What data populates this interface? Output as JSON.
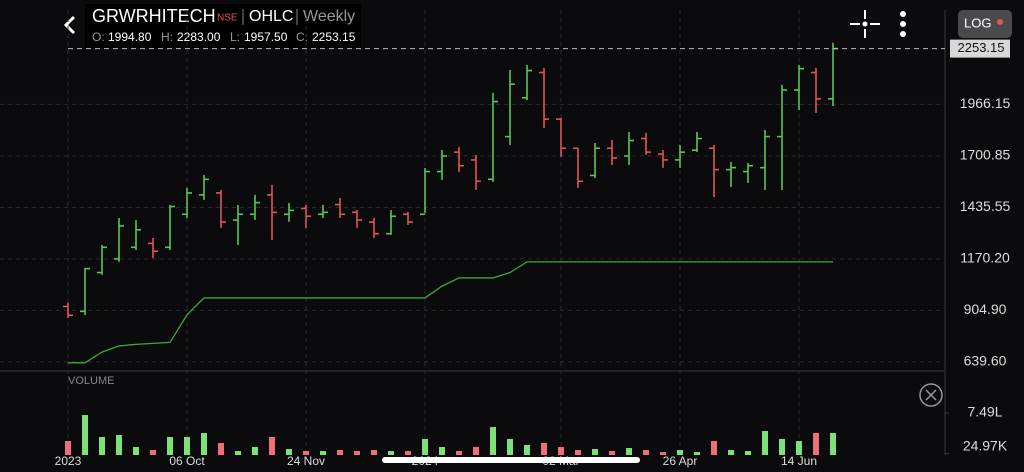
{
  "header": {
    "symbol": "GRWRHITECH",
    "exchange": "NSE",
    "chart_type": "OHLC",
    "interval": "Weekly",
    "log_button": "LOG",
    "ohlc": [
      {
        "label": "O:",
        "value": "1994.80"
      },
      {
        "label": "H:",
        "value": "2283.00"
      },
      {
        "label": "L:",
        "value": "1957.50"
      },
      {
        "label": "C:",
        "value": "2253.15"
      }
    ]
  },
  "chart_data": {
    "type": "ohlc",
    "up_color": "#5cc35a",
    "down_color": "#e0555a",
    "categories": [
      "2023",
      null,
      null,
      null,
      null,
      null,
      null,
      "06 Oct",
      null,
      null,
      null,
      null,
      null,
      null,
      "24 Nov",
      null,
      null,
      null,
      null,
      null,
      null,
      "2024",
      null,
      null,
      null,
      null,
      null,
      null,
      null,
      "02 Mar",
      null,
      null,
      null,
      null,
      null,
      null,
      "26 Apr",
      null,
      null,
      null,
      null,
      null,
      null,
      "14 Jun",
      null,
      null
    ],
    "open": [
      925,
      900,
      1100,
      1170,
      1230,
      1250,
      1230,
      1400,
      1500,
      1510,
      1370,
      1400,
      1500,
      1400,
      1430,
      1400,
      1450,
      1410,
      1360,
      1300,
      1400,
      1400,
      1620,
      1720,
      1680,
      1580,
      1800,
      2000,
      2130,
      1890,
      1740,
      1600,
      1740,
      1700,
      1790,
      1710,
      1680,
      1730,
      1740,
      1630,
      1620,
      1640,
      1800,
      2040,
      2130,
      1994.8
    ],
    "high": [
      945,
      1124,
      1242,
      1381,
      1370,
      1278,
      1448,
      1536,
      1602,
      1525,
      1448,
      1500,
      1551,
      1458,
      1448,
      1448,
      1484,
      1422,
      1381,
      1422,
      1412,
      1638,
      1731,
      1747,
      1706,
      2025,
      2143,
      2169,
      2154,
      1896,
      1742,
      1767,
      1783,
      1824,
      1819,
      1731,
      1757,
      1824,
      1757,
      1670,
      1664,
      1834,
      2066,
      2169,
      2154,
      2283
    ],
    "low": [
      866,
      881,
      1088,
      1155,
      1216,
      1175,
      1216,
      1381,
      1474,
      1330,
      1242,
      1371,
      1268,
      1361,
      1330,
      1381,
      1381,
      1330,
      1278,
      1294,
      1345,
      1407,
      1577,
      1618,
      1525,
      1567,
      1757,
      1988,
      1845,
      1695,
      1536,
      1587,
      1654,
      1654,
      1706,
      1639,
      1639,
      1721,
      1489,
      1541,
      1561,
      1525,
      1525,
      1937,
      1922,
      1957.5
    ],
    "close": [
      880,
      1120,
      1230,
      1340,
      1320,
      1210,
      1440,
      1510,
      1580,
      1360,
      1400,
      1460,
      1410,
      1420,
      1390,
      1410,
      1400,
      1370,
      1300,
      1390,
      1360,
      1620,
      1700,
      1650,
      1570,
      1980,
      2070,
      2140,
      1890,
      1740,
      1570,
      1740,
      1690,
      1780,
      1720,
      1680,
      1720,
      1790,
      1630,
      1640,
      1650,
      1800,
      2040,
      2150,
      1994.8,
      2253.15
    ],
    "trend_line": {
      "color": "#3fa83a",
      "values": [
        635,
        635,
        690,
        722,
        730,
        735,
        740,
        882,
        969,
        969,
        969,
        969,
        969,
        969,
        969,
        969,
        969,
        969,
        969,
        969,
        969,
        969,
        1030,
        1072,
        1072,
        1072,
        1100,
        1155,
        1155,
        1155,
        1155,
        1155,
        1155,
        1155,
        1155,
        1155,
        1155,
        1155,
        1155,
        1155,
        1155,
        1155,
        1155,
        1155,
        1155,
        1155
      ]
    },
    "last_price": 2253.15,
    "ylim": [
      598,
      2452
    ],
    "yticks": [
      {
        "value": 639.6,
        "label": "639.60"
      },
      {
        "value": 904.9,
        "label": "904.90"
      },
      {
        "value": 1170.2,
        "label": "1170.20"
      },
      1435.55,
      1700.85,
      1966.15
    ],
    "grid": true,
    "volume": {
      "label": "VOLUME",
      "up_color": "#7fe07a",
      "down_color": "#ee6f78",
      "values": [
        249000,
        712000,
        320000,
        356000,
        142000,
        89000,
        320000,
        320000,
        392000,
        214000,
        71000,
        142000,
        320000,
        107000,
        71000,
        71000,
        89000,
        71000,
        89000,
        71000,
        71000,
        285000,
        142000,
        71000,
        142000,
        498000,
        285000,
        178000,
        214000,
        142000,
        89000,
        107000,
        71000,
        125000,
        89000,
        53000,
        89000,
        53000,
        249000,
        89000,
        71000,
        427000,
        285000,
        249000,
        392000,
        392000
      ],
      "ylim": [
        0,
        1300000
      ],
      "yticks": [
        {
          "value": 749000,
          "label": "7.49L"
        },
        {
          "value": 24970,
          "label": "24.97K"
        }
      ]
    }
  }
}
